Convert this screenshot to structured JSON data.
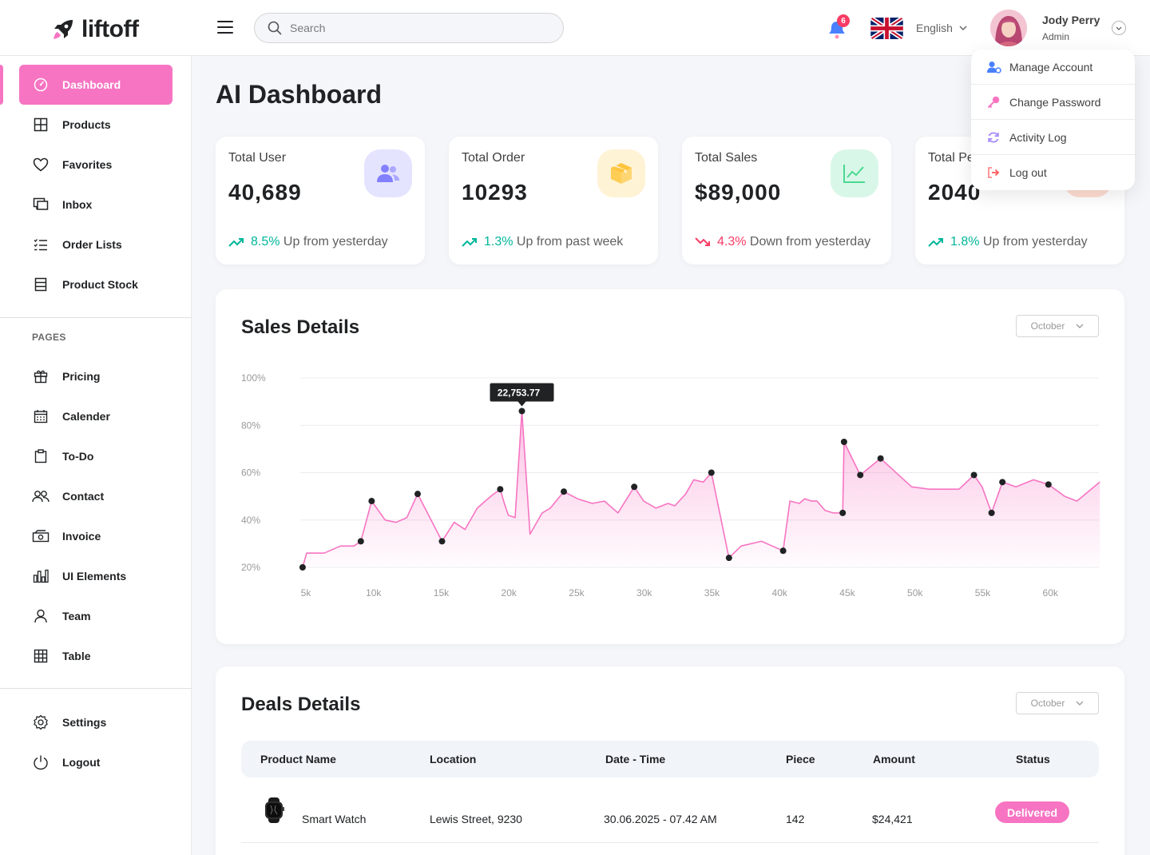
{
  "app": {
    "logo_text": "liftoff"
  },
  "header": {
    "search_placeholder": "Search",
    "notifications_count": "6",
    "language": "English",
    "user": {
      "name": "Jody Perry",
      "role": "Admin"
    }
  },
  "user_menu": [
    {
      "label": "Manage Account",
      "icon": "user-gear-icon"
    },
    {
      "label": "Change Password",
      "icon": "key-icon"
    },
    {
      "label": "Activity Log",
      "icon": "refresh-icon"
    },
    {
      "label": "Log out",
      "icon": "logout-icon"
    }
  ],
  "sidebar": {
    "main": [
      {
        "label": "Dashboard",
        "icon": "dashboard-icon",
        "active": true
      },
      {
        "label": "Products",
        "icon": "grid-icon"
      },
      {
        "label": "Favorites",
        "icon": "heart-icon"
      },
      {
        "label": "Inbox",
        "icon": "inbox-icon"
      },
      {
        "label": "Order Lists",
        "icon": "list-icon"
      },
      {
        "label": "Product Stock",
        "icon": "stock-icon"
      }
    ],
    "pages_title": "PAGES",
    "pages": [
      {
        "label": "Pricing",
        "icon": "gift-icon"
      },
      {
        "label": "Calender",
        "icon": "calendar-icon"
      },
      {
        "label": "To-Do",
        "icon": "clipboard-icon"
      },
      {
        "label": "Contact",
        "icon": "contacts-icon"
      },
      {
        "label": "Invoice",
        "icon": "invoice-icon"
      },
      {
        "label": "UI Elements",
        "icon": "bar-chart-icon"
      },
      {
        "label": "Team",
        "icon": "user-icon"
      },
      {
        "label": "Table",
        "icon": "table-icon"
      }
    ],
    "bottom": [
      {
        "label": "Settings",
        "icon": "gear-icon"
      },
      {
        "label": "Logout",
        "icon": "power-icon"
      }
    ]
  },
  "page_title": "AI Dashboard",
  "stats": [
    {
      "label": "Total User",
      "value": "40,689",
      "trend_pct": "8.5%",
      "trend_text": "Up from yesterday",
      "direction": "up",
      "icon": "users-icon",
      "icon_bg": "#e5e4ff",
      "icon_color": "#8280ff"
    },
    {
      "label": "Total Order",
      "value": "10293",
      "trend_pct": "1.3%",
      "trend_text": "Up from past week",
      "direction": "up",
      "icon": "box-icon",
      "icon_bg": "#fff3d6",
      "icon_color": "#fec53d"
    },
    {
      "label": "Total Sales",
      "value": "$89,000",
      "trend_pct": "4.3%",
      "trend_text": "Down from yesterday",
      "direction": "down",
      "icon": "line-chart-icon",
      "icon_bg": "#d9f7e8",
      "icon_color": "#4ad991"
    },
    {
      "label": "Total Pending",
      "value": "2040",
      "trend_pct": "1.8%",
      "trend_text": "Up from yesterday",
      "direction": "up",
      "icon": "clock-icon",
      "icon_bg": "#ffded1",
      "icon_color": "#ff9066"
    }
  ],
  "sales": {
    "title": "Sales Details",
    "month": "October",
    "chart_data": {
      "type": "area",
      "title": "Sales Details",
      "x_ticks": [
        "5k",
        "10k",
        "15k",
        "20k",
        "25k",
        "30k",
        "35k",
        "40k",
        "45k",
        "50k",
        "55k",
        "60k"
      ],
      "y_ticks": [
        "100%",
        "80%",
        "60%",
        "40%",
        "20%"
      ],
      "xlim": [
        5,
        64
      ],
      "ylim": [
        20,
        100
      ],
      "tooltip": {
        "x": 20.9,
        "y": 86,
        "label": "22,753.77"
      },
      "line": [
        [
          4.7,
          20
        ],
        [
          5,
          26
        ],
        [
          6.3,
          26
        ],
        [
          7.5,
          29
        ],
        [
          8.5,
          29
        ],
        [
          9,
          31
        ],
        [
          9.8,
          48
        ],
        [
          10.8,
          40
        ],
        [
          11.6,
          39
        ],
        [
          12.4,
          41
        ],
        [
          13.2,
          51
        ],
        [
          15,
          31
        ],
        [
          15.9,
          39
        ],
        [
          16.7,
          36
        ],
        [
          17.6,
          45
        ],
        [
          18.6,
          50
        ],
        [
          19.3,
          53
        ],
        [
          19.6,
          47
        ],
        [
          19.9,
          42
        ],
        [
          20.4,
          41
        ],
        [
          20.9,
          86
        ],
        [
          21.5,
          34
        ],
        [
          22.4,
          43
        ],
        [
          23,
          45
        ],
        [
          24,
          52
        ],
        [
          25,
          49
        ],
        [
          26.1,
          47
        ],
        [
          27,
          48
        ],
        [
          28,
          43
        ],
        [
          29.2,
          54
        ],
        [
          29.9,
          48
        ],
        [
          30.8,
          45
        ],
        [
          31.7,
          47
        ],
        [
          32.2,
          46
        ],
        [
          33,
          51
        ],
        [
          33.6,
          57
        ],
        [
          34.3,
          56
        ],
        [
          34.9,
          60
        ],
        [
          36.2,
          24
        ],
        [
          37.1,
          29
        ],
        [
          38.6,
          31
        ],
        [
          40.2,
          27
        ],
        [
          40.7,
          48
        ],
        [
          41.4,
          47
        ],
        [
          41.8,
          49
        ],
        [
          42.3,
          48
        ],
        [
          42.7,
          48
        ],
        [
          43.3,
          44
        ],
        [
          43.9,
          43
        ],
        [
          44.6,
          43
        ],
        [
          44.7,
          73
        ],
        [
          45.9,
          59
        ],
        [
          47.4,
          66
        ],
        [
          49.7,
          54
        ],
        [
          51,
          53
        ],
        [
          53.2,
          53
        ],
        [
          54.3,
          59
        ],
        [
          54.9,
          54
        ],
        [
          55.6,
          43
        ],
        [
          56.4,
          56
        ],
        [
          57.4,
          54
        ],
        [
          58.7,
          57
        ],
        [
          59.8,
          55
        ],
        [
          61,
          50
        ],
        [
          61.9,
          48
        ],
        [
          63.6,
          56
        ]
      ],
      "markers": [
        [
          4.7,
          20
        ],
        [
          9,
          31
        ],
        [
          9.8,
          48
        ],
        [
          13.2,
          51
        ],
        [
          15,
          31
        ],
        [
          19.3,
          53
        ],
        [
          20.9,
          86
        ],
        [
          24,
          52
        ],
        [
          29.2,
          54
        ],
        [
          34.9,
          60
        ],
        [
          36.2,
          24
        ],
        [
          40.2,
          27
        ],
        [
          44.6,
          43
        ],
        [
          44.7,
          73
        ],
        [
          45.9,
          59
        ],
        [
          47.4,
          66
        ],
        [
          54.3,
          59
        ],
        [
          55.6,
          43
        ],
        [
          56.4,
          56
        ],
        [
          59.8,
          55
        ]
      ],
      "color": "#f774c2"
    }
  },
  "deals": {
    "title": "Deals Details",
    "month": "October",
    "columns": [
      "Product Name",
      "Location",
      "Date - Time",
      "Piece",
      "Amount",
      "Status"
    ],
    "rows": [
      {
        "product": "Smart Watch",
        "location": "Lewis Street, 9230",
        "datetime": "30.06.2025 - 07.42 AM",
        "piece": "142",
        "amount": "$24,421",
        "status": "Delivered"
      }
    ]
  }
}
